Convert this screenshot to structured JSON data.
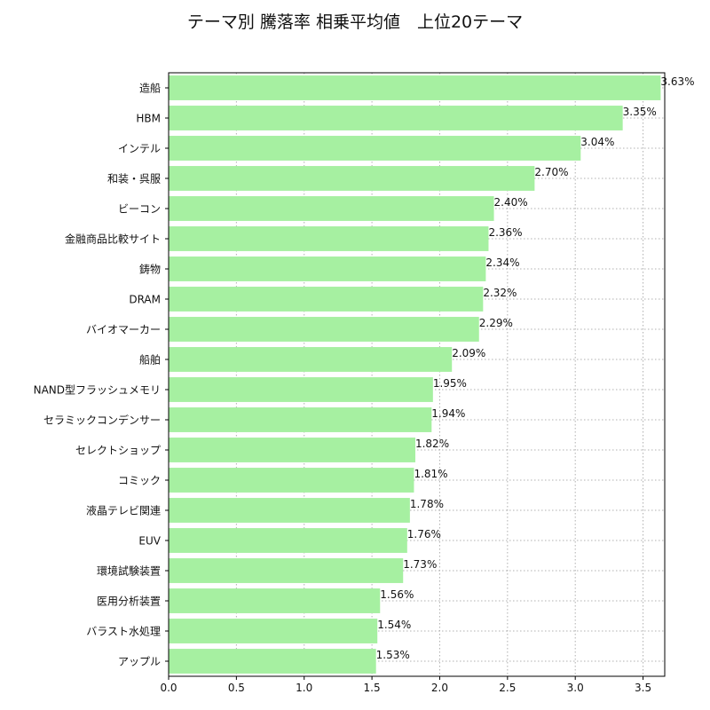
{
  "chart_data": {
    "type": "bar",
    "orientation": "horizontal",
    "title": "テーマ別 騰落率 相乗平均値　上位20テーマ",
    "xlabel": "",
    "ylabel": "",
    "xlim": [
      0,
      3.66
    ],
    "xticks": [
      0.0,
      0.5,
      1.0,
      1.5,
      2.0,
      2.5,
      3.0,
      3.5
    ],
    "xtick_labels": [
      "0.0",
      "0.5",
      "1.0",
      "1.5",
      "2.0",
      "2.5",
      "3.0",
      "3.5"
    ],
    "grid": true,
    "bar_color": "#a6f0a1",
    "categories": [
      "造船",
      "HBM",
      "インテル",
      "和装・呉服",
      "ビーコン",
      "金融商品比較サイト",
      "鋳物",
      "DRAM",
      "バイオマーカー",
      "船舶",
      "NAND型フラッシュメモリ",
      "セラミックコンデンサー",
      "セレクトショップ",
      "コミック",
      "液晶テレビ関連",
      "EUV",
      "環境試験装置",
      "医用分析装置",
      "バラスト水処理",
      "アップル"
    ],
    "values": [
      3.63,
      3.35,
      3.04,
      2.7,
      2.4,
      2.36,
      2.34,
      2.32,
      2.29,
      2.09,
      1.95,
      1.94,
      1.82,
      1.81,
      1.78,
      1.76,
      1.73,
      1.56,
      1.54,
      1.53
    ],
    "data_labels": [
      "3.63%",
      "3.35%",
      "3.04%",
      "2.70%",
      "2.40%",
      "2.36%",
      "2.34%",
      "2.32%",
      "2.29%",
      "2.09%",
      "1.95%",
      "1.94%",
      "1.82%",
      "1.81%",
      "1.78%",
      "1.76%",
      "1.73%",
      "1.56%",
      "1.54%",
      "1.53%"
    ]
  }
}
